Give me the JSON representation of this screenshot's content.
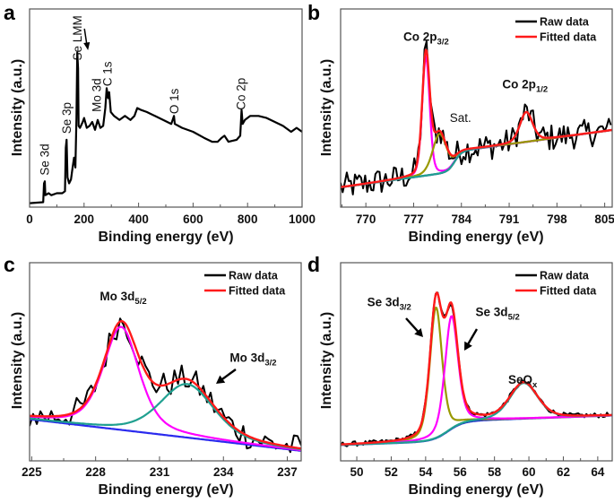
{
  "chart_data": [
    {
      "panel": "a",
      "type": "line",
      "xlabel": "Binding energy (eV)",
      "ylabel": "Intensity (a.u.)",
      "xlim": [
        0,
        1000
      ],
      "ylim": [
        0,
        1
      ],
      "xticks": [
        0,
        200,
        400,
        600,
        800,
        1000
      ],
      "xtick_labels": [
        "0",
        "200",
        "400",
        "600",
        "800",
        "1000"
      ],
      "grid": false,
      "series": [
        {
          "color": "#000000",
          "points": [
            [
              0,
              0.02
            ],
            [
              50,
              0.025
            ],
            [
              53,
              0.12
            ],
            [
              56,
              0.13
            ],
            [
              58,
              0.06
            ],
            [
              70,
              0.07
            ],
            [
              80,
              0.06
            ],
            [
              100,
              0.07
            ],
            [
              120,
              0.07
            ],
            [
              130,
              0.08
            ],
            [
              133,
              0.3
            ],
            [
              136,
              0.34
            ],
            [
              139,
              0.15
            ],
            [
              145,
              0.12
            ],
            [
              152,
              0.14
            ],
            [
              158,
              0.2
            ],
            [
              163,
              0.25
            ],
            [
              168,
              0.2
            ],
            [
              172,
              0.45
            ],
            [
              175,
              0.78
            ],
            [
              178,
              0.7
            ],
            [
              180,
              0.41
            ],
            [
              185,
              0.4
            ],
            [
              195,
              0.43
            ],
            [
              200,
              0.45
            ],
            [
              210,
              0.4
            ],
            [
              220,
              0.41
            ],
            [
              230,
              0.43
            ],
            [
              240,
              0.39
            ],
            [
              250,
              0.44
            ],
            [
              260,
              0.4
            ],
            [
              270,
              0.41
            ],
            [
              278,
              0.5
            ],
            [
              283,
              0.6
            ],
            [
              288,
              0.55
            ],
            [
              292,
              0.58
            ],
            [
              298,
              0.48
            ],
            [
              310,
              0.46
            ],
            [
              330,
              0.44
            ],
            [
              350,
              0.46
            ],
            [
              370,
              0.44
            ],
            [
              385,
              0.46
            ],
            [
              395,
              0.5
            ],
            [
              410,
              0.49
            ],
            [
              430,
              0.48
            ],
            [
              460,
              0.46
            ],
            [
              490,
              0.44
            ],
            [
              520,
              0.42
            ],
            [
              530,
              0.46
            ],
            [
              533,
              0.42
            ],
            [
              560,
              0.4
            ],
            [
              600,
              0.38
            ],
            [
              640,
              0.35
            ],
            [
              670,
              0.33
            ],
            [
              690,
              0.33
            ],
            [
              705,
              0.35
            ],
            [
              715,
              0.36
            ],
            [
              730,
              0.33
            ],
            [
              760,
              0.34
            ],
            [
              773,
              0.36
            ],
            [
              778,
              0.49
            ],
            [
              782,
              0.42
            ],
            [
              790,
              0.44
            ],
            [
              810,
              0.46
            ],
            [
              840,
              0.46
            ],
            [
              870,
              0.45
            ],
            [
              900,
              0.43
            ],
            [
              930,
              0.41
            ],
            [
              960,
              0.38
            ],
            [
              980,
              0.4
            ],
            [
              1000,
              0.38
            ]
          ]
        }
      ],
      "annotations": [
        {
          "text": "Se 3d",
          "x": 55,
          "y": 0.16
        },
        {
          "text": "Se 3p",
          "x": 135,
          "y": 0.37
        },
        {
          "text": "Se LMM",
          "x": 175,
          "y": 0.74,
          "arrow": true
        },
        {
          "text": "Mo 3d",
          "x": 245,
          "y": 0.48
        },
        {
          "text": "C 1s",
          "x": 285,
          "y": 0.61
        },
        {
          "text": "O 1s",
          "x": 530,
          "y": 0.47
        },
        {
          "text": "Co 2p",
          "x": 775,
          "y": 0.49
        }
      ]
    },
    {
      "panel": "b",
      "type": "line",
      "xlabel": "Binding energy (eV)",
      "ylabel": "Intensity (a.u.)",
      "xlim": [
        766.3,
        806.1
      ],
      "ylim": [
        0,
        1
      ],
      "xticks": [
        770,
        777,
        784,
        791,
        798,
        805
      ],
      "xtick_labels": [
        "770",
        "777",
        "784",
        "791",
        "798",
        "805"
      ],
      "grid": false,
      "legend": {
        "position": "top-right",
        "entries": [
          {
            "name": "Raw data",
            "color": "#000000"
          },
          {
            "name": "Fitted data",
            "color": "#ff1a1a"
          }
        ]
      },
      "baseline": {
        "color": "#22229a",
        "start": 0.1,
        "slope": 0.00475,
        "step": {
          "center": 783,
          "height": 0.1,
          "width": 0.5
        }
      },
      "components": [
        {
          "color": "#ff00ff",
          "center": 778.8,
          "hwhm": 0.65,
          "height": 0.6,
          "eta": 0.25
        },
        {
          "color": "#999900",
          "center": 780.8,
          "hwhm": 1.2,
          "height": 0.2,
          "eta": 0.3
        },
        {
          "color": "#20a090",
          "center": 793.5,
          "hwhm": 1.1,
          "height": 0.15,
          "eta": 0.3
        }
      ],
      "annotations": [
        {
          "text": "Co 2p",
          "sub": "3/2",
          "x": 775.5,
          "y": 0.84,
          "bold": true
        },
        {
          "text": "Co 2p",
          "sub": "1/2",
          "x": 790,
          "y": 0.6,
          "bold": true
        },
        {
          "text": "Sat.",
          "x": 782.3,
          "y": 0.43,
          "bold": false
        }
      ]
    },
    {
      "panel": "c",
      "type": "line",
      "xlabel": "Binding energy (eV)",
      "ylabel": "Intensity (a.u.)",
      "xlim": [
        224.9,
        237.65
      ],
      "ylim": [
        0,
        1
      ],
      "xticks": [
        225,
        228,
        231,
        234,
        237
      ],
      "xtick_labels": [
        "225",
        "228",
        "231",
        "234",
        "237"
      ],
      "grid": false,
      "legend": {
        "position": "top-right",
        "entries": [
          {
            "name": "Raw data",
            "color": "#000000"
          },
          {
            "name": "Fitted data",
            "color": "#ff1a1a"
          }
        ]
      },
      "baseline": {
        "color": "#2a2aee",
        "start": 0.21,
        "slope": -0.0125
      },
      "components": [
        {
          "color": "#ff00ff",
          "center": 229.2,
          "hwhm": 1.0,
          "height": 0.52,
          "eta": 0.5
        },
        {
          "color": "#20a090",
          "center": 232.3,
          "hwhm": 1.5,
          "height": 0.27,
          "eta": 0.4
        }
      ],
      "annotations": [
        {
          "text": "Mo 3d",
          "sub": "5/2",
          "x": 228.2,
          "y": 0.81,
          "bold": true
        },
        {
          "text": "Mo 3d",
          "sub": "3/2",
          "x": 234.3,
          "y": 0.5,
          "bold": true,
          "arrow": true
        }
      ]
    },
    {
      "panel": "d",
      "type": "line",
      "xlabel": "Binding energy (eV)",
      "ylabel": "Intensity (a.u.)",
      "xlim": [
        49.06,
        64.84
      ],
      "ylim": [
        0,
        1
      ],
      "xticks": [
        50,
        52,
        54,
        56,
        58,
        60,
        62,
        64
      ],
      "xtick_labels": [
        "50",
        "52",
        "54",
        "56",
        "58",
        "60",
        "62",
        "64"
      ],
      "grid": false,
      "legend": {
        "position": "top-right",
        "entries": [
          {
            "name": "Raw data",
            "color": "#000000"
          },
          {
            "name": "Fitted data",
            "color": "#ff1a1a"
          }
        ]
      },
      "baseline": {
        "color": "#2233cc",
        "start": 0.08,
        "slope": 0.0031,
        "step": {
          "center": 55.3,
          "height": 0.1,
          "width": 0.45
        }
      },
      "components": [
        {
          "color": "#999900",
          "center": 54.6,
          "hwhm": 0.42,
          "height": 0.66,
          "eta": 0.4
        },
        {
          "color": "#ff00ff",
          "center": 55.5,
          "hwhm": 0.45,
          "height": 0.57,
          "eta": 0.4
        },
        {
          "color": "#20a090",
          "center": 59.7,
          "hwhm": 0.95,
          "height": 0.18,
          "eta": 0.3
        }
      ],
      "annotations": [
        {
          "text": "Se 3d",
          "sub": "3/2",
          "x": 50.6,
          "y": 0.78,
          "bold": true,
          "arrow": true
        },
        {
          "text": "Se 3d",
          "sub": "5/2",
          "x": 56.9,
          "y": 0.73,
          "bold": true,
          "arrow": true
        },
        {
          "text": "SeO",
          "sub": "x",
          "x": 58.8,
          "y": 0.39,
          "bold": true
        }
      ]
    }
  ]
}
